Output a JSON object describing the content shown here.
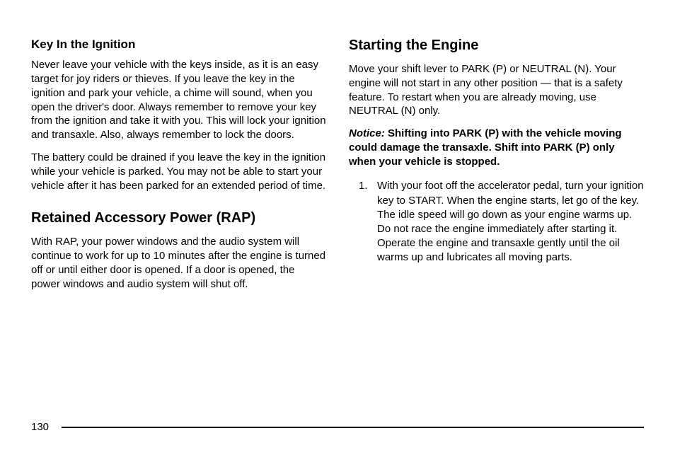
{
  "leftColumn": {
    "section1": {
      "title": "Key In the Ignition",
      "para1": "Never leave your vehicle with the keys inside, as it is an easy target for joy riders or thieves. If you leave the key in the ignition and park your vehicle, a chime will sound, when you open the driver's door. Always remember to remove your key from the ignition and take it with you. This will lock your ignition and transaxle. Also, always remember to lock the doors.",
      "para2": "The battery could be drained if you leave the key in the ignition while your vehicle is parked. You may not be able to start your vehicle after it has been parked for an extended period of time."
    },
    "section2": {
      "title": "Retained Accessory Power (RAP)",
      "para1": "With RAP, your power windows and the audio system will continue to work for up to 10 minutes after the engine is turned off or until either door is opened. If a door is opened, the power windows and audio system will shut off."
    }
  },
  "rightColumn": {
    "section1": {
      "title": "Starting the Engine",
      "para1": "Move your shift lever to PARK (P) or NEUTRAL (N). Your engine will not start in any other position — that is a safety feature. To restart when you are already moving, use NEUTRAL (N) only.",
      "noticeLabel": "Notice:",
      "noticeBody": "Shifting into PARK (P) with the vehicle moving could damage the transaxle. Shift into PARK (P) only when your vehicle is stopped.",
      "item1Num": "1.",
      "item1": "With your foot off the accelerator pedal, turn your ignition key to START. When the engine starts, let go of the key. The idle speed will go down as your engine warms up. Do not race the engine immediately after starting it. Operate the engine and transaxle gently until the oil warms up and lubricates all moving parts."
    }
  },
  "pageNumber": "130"
}
